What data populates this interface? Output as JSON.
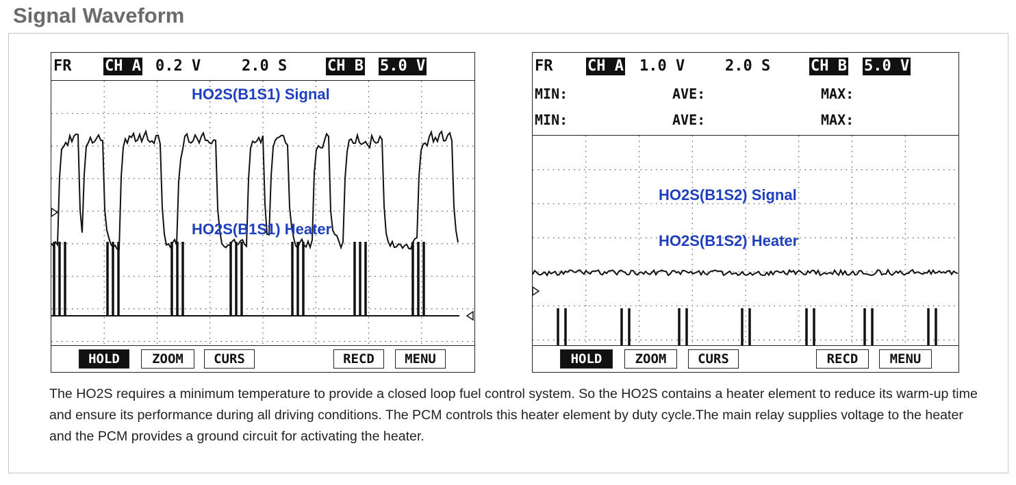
{
  "page": {
    "title": "Signal Waveform"
  },
  "scopes": [
    {
      "header": {
        "mode": "FR",
        "ch_a_label": "CH A",
        "ch_a_scale": "0.2 V",
        "time_scale": "2.0 S",
        "ch_b_label": "CH B",
        "ch_b_scale": "5.0 V"
      },
      "signal_label": "HO2S(B1S1) Signal",
      "heater_label": "HO2S(B1S1) Heater",
      "softkeys": [
        "HOLD",
        "ZOOM",
        "CURS",
        "RECD",
        "MENU"
      ]
    },
    {
      "header": {
        "mode": "FR",
        "ch_a_label": "CH A",
        "ch_a_scale": "1.0 V",
        "time_scale": "2.0 S",
        "ch_b_label": "CH B",
        "ch_b_scale": "5.0 V"
      },
      "stats": {
        "min": "MIN:",
        "ave": "AVE:",
        "max": "MAX:"
      },
      "signal_label": "HO2S(B1S2) Signal",
      "heater_label": "HO2S(B1S2) Heater",
      "softkeys": [
        "HOLD",
        "ZOOM",
        "CURS",
        "RECD",
        "MENU"
      ]
    }
  ],
  "description": "The HO2S requires a minimum temperature to provide a closed loop fuel control system. So the HO2S contains a heater element to reduce its warm-up time and ensure its performance during all driving conditions.  The PCM controls this heater element by duty cycle.The main relay supplies voltage to the heater and the PCM provides a ground circuit for activating the heater.",
  "colors": {
    "trace_label": "#1f3fbf",
    "title": "#6b6b6b"
  }
}
